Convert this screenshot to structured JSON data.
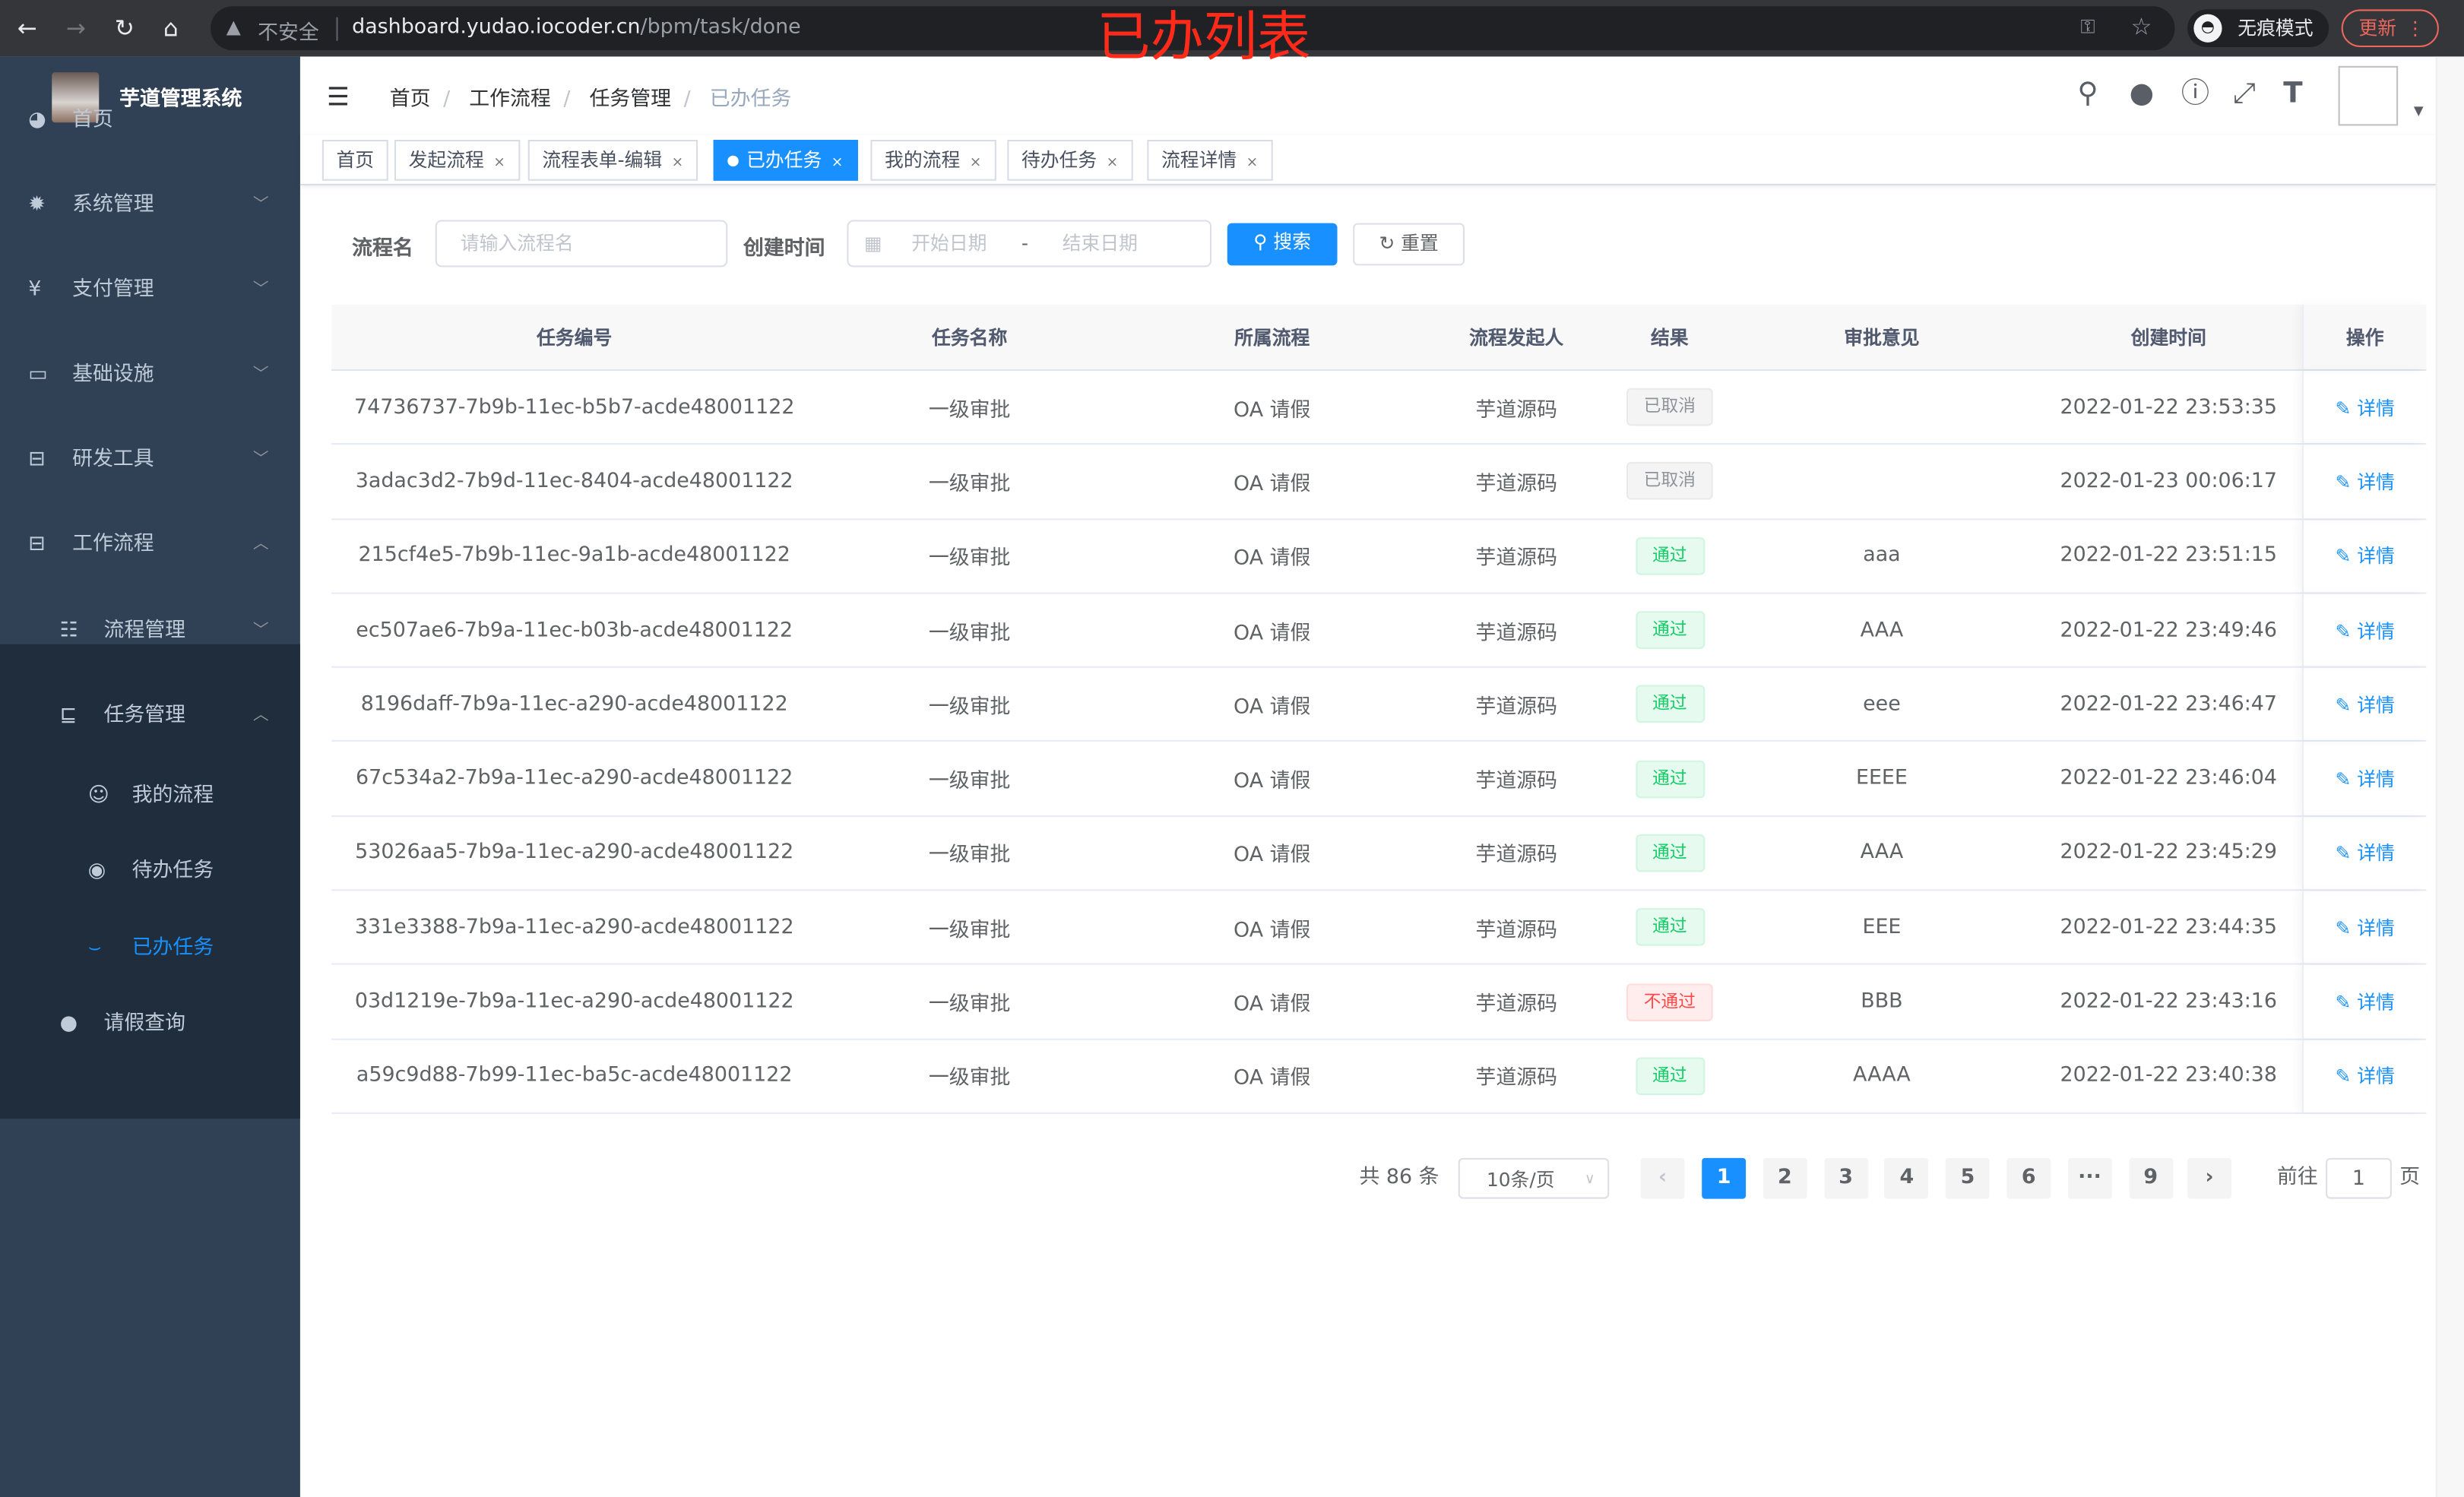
{
  "browser": {
    "insecure_label": "不安全",
    "url_host": "dashboard.yudao.iocoder.cn",
    "url_path": "/bpm/task/done",
    "incognito_label": "无痕模式",
    "update_label": "更新"
  },
  "overlay_title": "已办列表",
  "sidebar": {
    "system_name": "芋道管理系统",
    "items": [
      {
        "label": "首页",
        "icon": "dashboard-icon"
      },
      {
        "label": "系统管理",
        "icon": "gear-icon"
      },
      {
        "label": "支付管理",
        "icon": "yen-icon"
      },
      {
        "label": "基础设施",
        "icon": "monitor-icon"
      },
      {
        "label": "研发工具",
        "icon": "toolbox-icon"
      },
      {
        "label": "工作流程",
        "icon": "toolbox-icon"
      },
      {
        "label": "流程管理",
        "icon": "list-icon"
      },
      {
        "label": "任务管理",
        "icon": "task-icon"
      },
      {
        "label": "我的流程",
        "icon": "face-icon"
      },
      {
        "label": "待办任务",
        "icon": "eye-icon"
      },
      {
        "label": "已办任务",
        "icon": "eye-closed-icon"
      },
      {
        "label": "请假查询",
        "icon": "user-icon"
      }
    ]
  },
  "breadcrumb": [
    "首页",
    "工作流程",
    "任务管理",
    "已办任务"
  ],
  "tags": [
    {
      "label": "首页"
    },
    {
      "label": "发起流程"
    },
    {
      "label": "流程表单-编辑"
    },
    {
      "label": "已办任务",
      "active": true
    },
    {
      "label": "我的流程"
    },
    {
      "label": "待办任务"
    },
    {
      "label": "流程详情"
    }
  ],
  "search": {
    "name_label": "流程名",
    "name_placeholder": "请输入流程名",
    "time_label": "创建时间",
    "start_placeholder": "开始日期",
    "range_sep": "-",
    "end_placeholder": "结束日期",
    "search_btn": "搜索",
    "reset_btn": "重置"
  },
  "table": {
    "headers": [
      "任务编号",
      "任务名称",
      "所属流程",
      "流程发起人",
      "结果",
      "审批意见",
      "创建时间",
      "操作"
    ],
    "rows": [
      {
        "id": "74736737-7b9b-11ec-b5b7-acde48001122",
        "name": "一级审批",
        "process": "OA 请假",
        "starter": "芋道源码",
        "result": "已取消",
        "status": "gray",
        "comment": "",
        "time": "2022-01-22 23:53:35",
        "action": "详情"
      },
      {
        "id": "3adac3d2-7b9d-11ec-8404-acde48001122",
        "name": "一级审批",
        "process": "OA 请假",
        "starter": "芋道源码",
        "result": "已取消",
        "status": "gray",
        "comment": "",
        "time": "2022-01-23 00:06:17",
        "action": "详情"
      },
      {
        "id": "215cf4e5-7b9b-11ec-9a1b-acde48001122",
        "name": "一级审批",
        "process": "OA 请假",
        "starter": "芋道源码",
        "result": "通过",
        "status": "green",
        "comment": "aaa",
        "time": "2022-01-22 23:51:15",
        "action": "详情"
      },
      {
        "id": "ec507ae6-7b9a-11ec-b03b-acde48001122",
        "name": "一级审批",
        "process": "OA 请假",
        "starter": "芋道源码",
        "result": "通过",
        "status": "green",
        "comment": "AAA",
        "time": "2022-01-22 23:49:46",
        "action": "详情"
      },
      {
        "id": "8196daff-7b9a-11ec-a290-acde48001122",
        "name": "一级审批",
        "process": "OA 请假",
        "starter": "芋道源码",
        "result": "通过",
        "status": "green",
        "comment": "eee",
        "time": "2022-01-22 23:46:47",
        "action": "详情"
      },
      {
        "id": "67c534a2-7b9a-11ec-a290-acde48001122",
        "name": "一级审批",
        "process": "OA 请假",
        "starter": "芋道源码",
        "result": "通过",
        "status": "green",
        "comment": "EEEE",
        "time": "2022-01-22 23:46:04",
        "action": "详情"
      },
      {
        "id": "53026aa5-7b9a-11ec-a290-acde48001122",
        "name": "一级审批",
        "process": "OA 请假",
        "starter": "芋道源码",
        "result": "通过",
        "status": "green",
        "comment": "AAA",
        "time": "2022-01-22 23:45:29",
        "action": "详情"
      },
      {
        "id": "331e3388-7b9a-11ec-a290-acde48001122",
        "name": "一级审批",
        "process": "OA 请假",
        "starter": "芋道源码",
        "result": "通过",
        "status": "green",
        "comment": "EEE",
        "time": "2022-01-22 23:44:35",
        "action": "详情"
      },
      {
        "id": "03d1219e-7b9a-11ec-a290-acde48001122",
        "name": "一级审批",
        "process": "OA 请假",
        "starter": "芋道源码",
        "result": "不通过",
        "status": "red",
        "comment": "BBB",
        "time": "2022-01-22 23:43:16",
        "action": "详情"
      },
      {
        "id": "a59c9d88-7b99-11ec-ba5c-acde48001122",
        "name": "一级审批",
        "process": "OA 请假",
        "starter": "芋道源码",
        "result": "通过",
        "status": "green",
        "comment": "AAAA",
        "time": "2022-01-22 23:40:38",
        "action": "详情"
      }
    ]
  },
  "pagination": {
    "total": "共 86 条",
    "page_size": "10条/页",
    "pages": [
      "1",
      "2",
      "3",
      "4",
      "5",
      "6",
      "···",
      "9"
    ],
    "current": "1",
    "goto_label": "前往",
    "goto_value": "1",
    "page_suffix": "页"
  },
  "colors": {
    "accent": "#1890ff",
    "sidebar": "#304156",
    "submenu": "#1f2d3d",
    "overlay": "#ff2a1a"
  }
}
